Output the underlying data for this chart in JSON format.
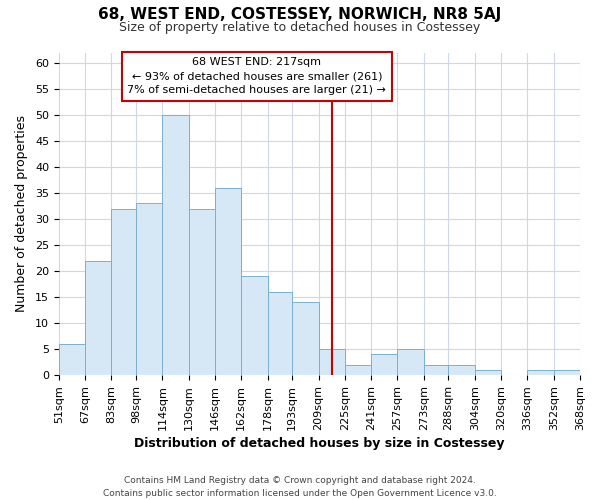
{
  "title": "68, WEST END, COSTESSEY, NORWICH, NR8 5AJ",
  "subtitle": "Size of property relative to detached houses in Costessey",
  "xlabel": "Distribution of detached houses by size in Costessey",
  "ylabel": "Number of detached properties",
  "footer_line1": "Contains HM Land Registry data © Crown copyright and database right 2024.",
  "footer_line2": "Contains public sector information licensed under the Open Government Licence v3.0.",
  "bar_edges": [
    51,
    67,
    83,
    98,
    114,
    130,
    146,
    162,
    178,
    193,
    209,
    225,
    241,
    257,
    273,
    288,
    304,
    320,
    336,
    352,
    368
  ],
  "bar_heights": [
    6,
    22,
    32,
    33,
    50,
    32,
    36,
    19,
    16,
    14,
    5,
    2,
    4,
    5,
    2,
    2,
    1,
    0,
    1,
    1
  ],
  "bar_color": "#d6e8f5",
  "bar_edgecolor": "#7aafd4",
  "vline_x": 217,
  "vline_color": "#cc0000",
  "annotation_title": "68 WEST END: 217sqm",
  "annotation_line1": "← 93% of detached houses are smaller (261)",
  "annotation_line2": "7% of semi-detached houses are larger (21) →",
  "annotation_box_facecolor": "#ffffff",
  "annotation_box_edgecolor": "#cc0000",
  "ylim": [
    0,
    62
  ],
  "xlim": [
    51,
    368
  ],
  "yticks": [
    0,
    5,
    10,
    15,
    20,
    25,
    30,
    35,
    40,
    45,
    50,
    55,
    60
  ],
  "tick_labels": [
    "51sqm",
    "67sqm",
    "83sqm",
    "98sqm",
    "114sqm",
    "130sqm",
    "146sqm",
    "162sqm",
    "178sqm",
    "193sqm",
    "209sqm",
    "225sqm",
    "241sqm",
    "257sqm",
    "273sqm",
    "288sqm",
    "304sqm",
    "320sqm",
    "336sqm",
    "352sqm",
    "368sqm"
  ],
  "tick_positions": [
    51,
    67,
    83,
    98,
    114,
    130,
    146,
    162,
    178,
    193,
    209,
    225,
    241,
    257,
    273,
    288,
    304,
    320,
    336,
    352,
    368
  ],
  "background_color": "#ffffff",
  "grid_color": "#c8d4e8",
  "grid_alpha": 0.9
}
